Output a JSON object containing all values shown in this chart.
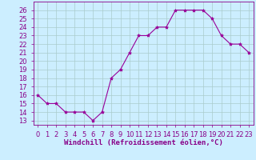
{
  "x": [
    0,
    1,
    2,
    3,
    4,
    5,
    6,
    7,
    8,
    9,
    10,
    11,
    12,
    13,
    14,
    15,
    16,
    17,
    18,
    19,
    20,
    21,
    22,
    23
  ],
  "y": [
    16,
    15,
    15,
    14,
    14,
    14,
    13,
    14,
    18,
    19,
    21,
    23,
    23,
    24,
    24,
    26,
    26,
    26,
    26,
    25,
    23,
    22,
    22,
    21
  ],
  "line_color": "#990099",
  "marker": "*",
  "marker_size": 3,
  "bg_color": "#cceeff",
  "grid_color": "#aacccc",
  "xlabel": "Windchill (Refroidissement éolien,°C)",
  "xlabel_fontsize": 6.5,
  "yticks": [
    13,
    14,
    15,
    16,
    17,
    18,
    19,
    20,
    21,
    22,
    23,
    24,
    25,
    26
  ],
  "xtick_labels": [
    "0",
    "1",
    "2",
    "3",
    "4",
    "5",
    "6",
    "7",
    "8",
    "9",
    "10",
    "11",
    "12",
    "13",
    "14",
    "15",
    "16",
    "17",
    "18",
    "19",
    "20",
    "21",
    "22",
    "23"
  ],
  "ylim": [
    12.5,
    27.0
  ],
  "xlim": [
    -0.5,
    23.5
  ],
  "tick_fontsize": 6.0,
  "tick_color": "#880088",
  "spine_color": "#880088"
}
